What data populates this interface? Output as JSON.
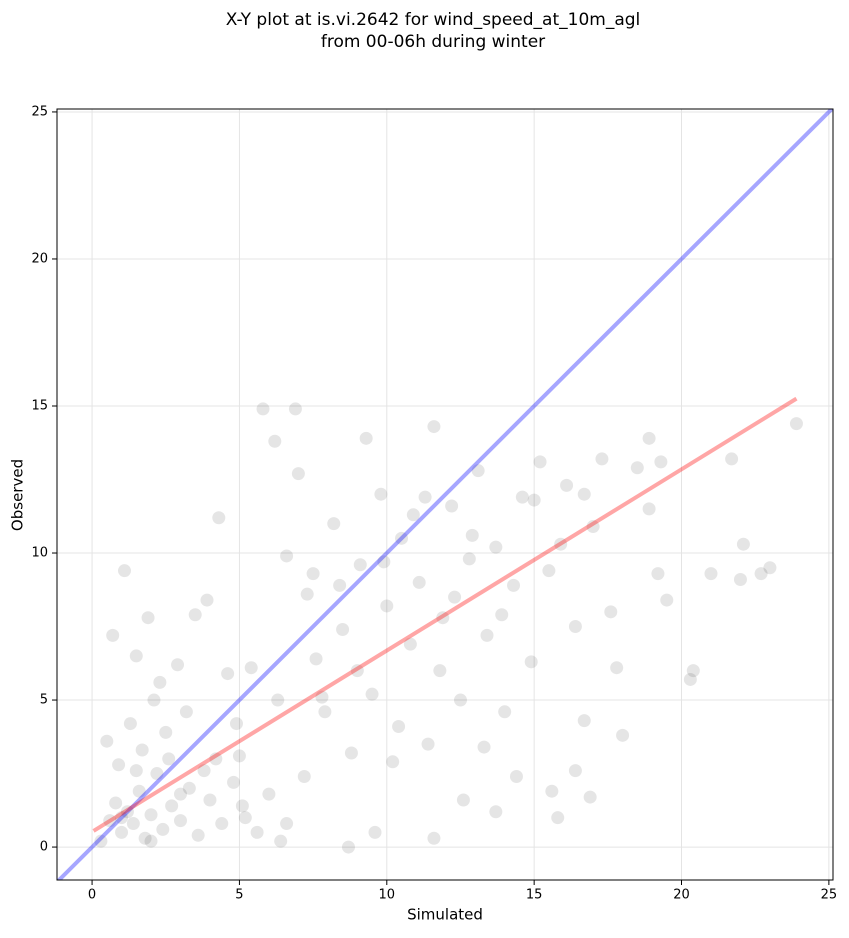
{
  "chart_data": {
    "type": "scatter",
    "title": "X-Y plot at is.vi.2642 for wind_speed_at_10m_agl",
    "subtitle": "from 00-06h during winter",
    "x_label": "Simulated",
    "y_label": "Observed",
    "xlim": [
      -1.19,
      25.14
    ],
    "ylim": [
      -1.12,
      25.1
    ],
    "xticks": [
      0,
      5,
      10,
      15,
      20,
      25
    ],
    "yticks": [
      0,
      5,
      10,
      15,
      20,
      25
    ],
    "grid": true,
    "series": [
      {
        "color": "#000000",
        "x": [
          0.3,
          0.6,
          0.8,
          1.0,
          1.2,
          1.4,
          1.6,
          1.8,
          2.0,
          2.2,
          2.4,
          2.7,
          3.0,
          3.3,
          3.6,
          4.0,
          4.4,
          4.8,
          5.2,
          5.6,
          6.0,
          6.4,
          0.5,
          0.9,
          1.3,
          1.7,
          2.1,
          2.5,
          2.9,
          3.2,
          0.7,
          1.1,
          1.5,
          1.9,
          2.3,
          3.5,
          3.9,
          4.3,
          4.6,
          5.0,
          5.4,
          5.8,
          6.2,
          6.6,
          6.9,
          7.0,
          7.3,
          7.6,
          7.9,
          8.2,
          8.5,
          8.8,
          9.1,
          9.3,
          9.5,
          9.8,
          10.0,
          10.2,
          10.5,
          10.8,
          11.1,
          11.4,
          11.6,
          11.9,
          12.2,
          12.5,
          12.8,
          13.1,
          13.4,
          13.7,
          14.0,
          14.3,
          14.6,
          14.9,
          15.2,
          15.5,
          15.8,
          16.1,
          16.4,
          16.7,
          17.0,
          17.3,
          17.6,
          18.0,
          18.5,
          18.9,
          19.2,
          19.5,
          20.3,
          20.4,
          21.0,
          22.0,
          22.1,
          22.7,
          23.0,
          21.7,
          23.9,
          19.3,
          18.9,
          8.7,
          9.6,
          11.6,
          12.6,
          13.7,
          15.6,
          16.4,
          16.9,
          14.4,
          7.2,
          6.6,
          5.1,
          4.2,
          3.8,
          7.8,
          8.4,
          9.0,
          10.4,
          10.9,
          11.8,
          12.3,
          12.9,
          13.3,
          13.9,
          15.0,
          15.9,
          16.7,
          17.8,
          3.0,
          2.0,
          1.5,
          1.0,
          2.6,
          4.9,
          6.3,
          7.5,
          9.9,
          11.3
        ],
        "values": [
          0.2,
          0.9,
          1.5,
          0.5,
          1.2,
          0.8,
          1.9,
          0.3,
          1.1,
          2.5,
          0.6,
          1.4,
          0.9,
          2.0,
          0.4,
          1.6,
          0.8,
          2.2,
          1.0,
          0.5,
          1.8,
          0.2,
          3.6,
          2.8,
          4.2,
          3.3,
          5.0,
          3.9,
          6.2,
          4.6,
          7.2,
          9.4,
          6.5,
          7.8,
          5.6,
          7.9,
          8.4,
          11.2,
          5.9,
          3.1,
          6.1,
          14.9,
          13.8,
          9.9,
          14.9,
          12.7,
          8.6,
          6.4,
          4.6,
          11.0,
          7.4,
          3.2,
          9.6,
          13.9,
          5.2,
          12.0,
          8.2,
          2.9,
          10.5,
          6.9,
          9.0,
          3.5,
          14.3,
          7.8,
          11.6,
          5.0,
          9.8,
          12.8,
          7.2,
          10.2,
          4.6,
          8.9,
          11.9,
          6.3,
          13.1,
          9.4,
          1.0,
          12.3,
          7.5,
          4.3,
          10.9,
          13.2,
          8.0,
          3.8,
          12.9,
          11.5,
          9.3,
          8.4,
          5.7,
          6.0,
          9.3,
          9.1,
          10.3,
          9.3,
          9.5,
          13.2,
          14.4,
          13.1,
          13.9,
          0.0,
          0.5,
          0.3,
          1.6,
          1.2,
          1.9,
          2.6,
          1.7,
          2.4,
          2.4,
          0.8,
          1.4,
          3.0,
          2.6,
          5.1,
          8.9,
          6.0,
          4.1,
          11.3,
          6.0,
          8.5,
          10.6,
          3.4,
          7.9,
          11.8,
          10.3,
          12.0,
          6.1,
          1.8,
          0.2,
          2.6,
          1.0,
          3.0,
          4.2,
          5.0,
          9.3,
          9.7,
          11.9
        ]
      }
    ],
    "lines": [
      {
        "color": "#0000ff",
        "x": [
          -1.19,
          25.14
        ],
        "values": [
          -1.19,
          25.14
        ]
      },
      {
        "color": "#ff0000",
        "x": [
          0.05,
          23.9
        ],
        "values": [
          0.55,
          15.25
        ]
      }
    ]
  }
}
